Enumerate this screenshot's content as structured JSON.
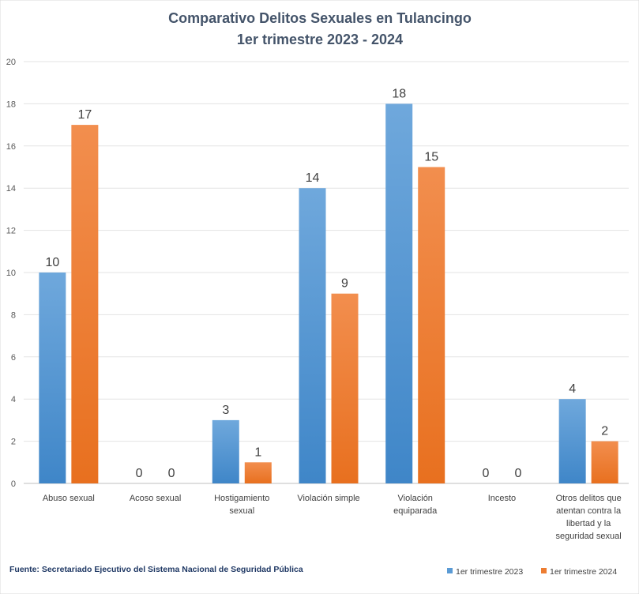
{
  "chart_data": {
    "type": "bar",
    "title": "Comparativo  Delitos  Sexuales en Tulancingo",
    "subtitle": "1er trimestre  2023 - 2024",
    "categories": [
      [
        "Abuso sexual"
      ],
      [
        "Acoso sexual"
      ],
      [
        "Hostigamiento",
        "sexual"
      ],
      [
        "Violación simple"
      ],
      [
        "Violación",
        "equiparada"
      ],
      [
        "Incesto"
      ],
      [
        "Otros delitos que",
        "atentan contra la",
        "libertad y la",
        "seguridad sexual"
      ]
    ],
    "series": [
      {
        "name": "1er trimestre 2023",
        "color": "#5b9bd5",
        "values": [
          10,
          0,
          3,
          14,
          18,
          0,
          4
        ]
      },
      {
        "name": "1er trimestre 2024",
        "color": "#ed7d31",
        "values": [
          17,
          0,
          1,
          9,
          15,
          0,
          2
        ]
      }
    ],
    "ylim": [
      0,
      20
    ],
    "yticks": [
      0,
      2,
      4,
      6,
      8,
      10,
      12,
      14,
      16,
      18,
      20
    ],
    "grid": true,
    "legend": "bottom-right"
  },
  "source_note": "Fuente: Secretariado Ejecutivo del Sistema Nacional de Seguridad Pública"
}
